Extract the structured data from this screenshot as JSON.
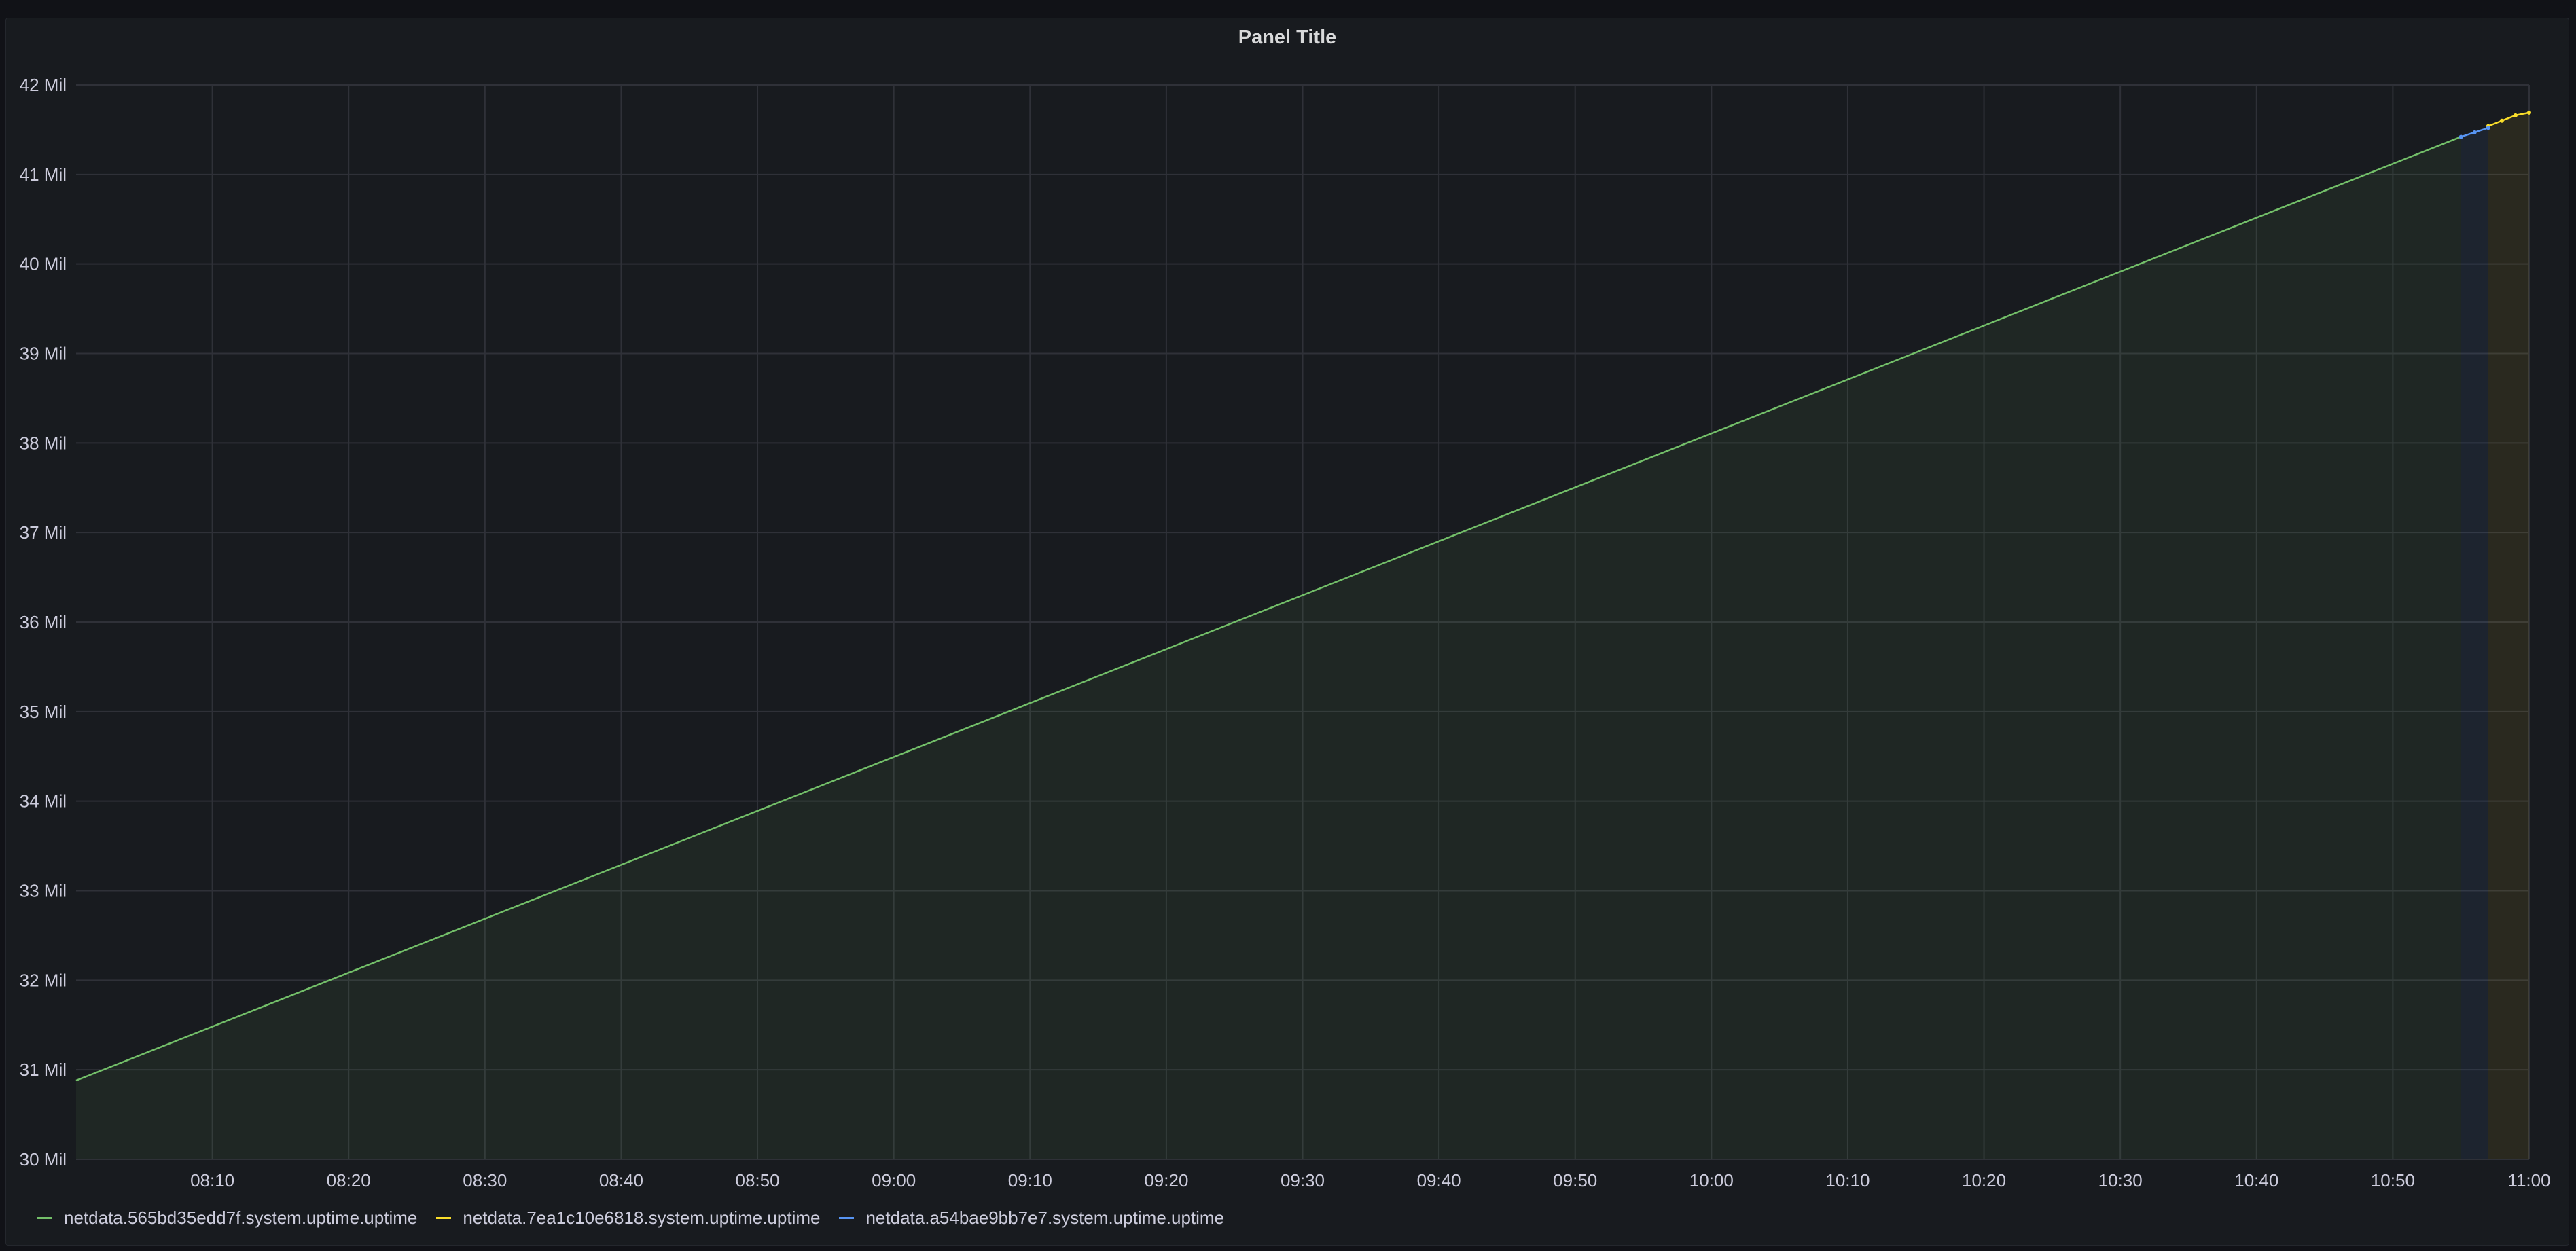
{
  "panel": {
    "title": "Panel Title"
  },
  "colors": {
    "background": "#111217",
    "panel_background": "#181b1f",
    "grid": "#2f3138",
    "text": "#ccccdc"
  },
  "chart_data": {
    "type": "line",
    "title": "Panel Title",
    "xlabel": "",
    "ylabel": "",
    "ylim": [
      30000000,
      42000000
    ],
    "xlim": [
      "08:00:00",
      "11:00:00"
    ],
    "grid": true,
    "legend_position": "bottom-left",
    "x_ticks": [
      "08:10",
      "08:20",
      "08:30",
      "08:40",
      "08:50",
      "09:00",
      "09:10",
      "09:20",
      "09:30",
      "09:40",
      "09:50",
      "10:00",
      "10:10",
      "10:20",
      "10:30",
      "10:40",
      "10:50",
      "11:00"
    ],
    "y_ticks": [
      "30 Mil",
      "31 Mil",
      "32 Mil",
      "33 Mil",
      "34 Mil",
      "35 Mil",
      "36 Mil",
      "37 Mil",
      "38 Mil",
      "39 Mil",
      "40 Mil",
      "41 Mil",
      "42 Mil"
    ],
    "series": [
      {
        "name": "netdata.565bd35edd7f.system.uptime.uptime",
        "color": "#73bf69",
        "fill": true,
        "x": [
          "08:00:00",
          "10:55:00"
        ],
        "values": [
          30880000,
          41420000
        ]
      },
      {
        "name": "netdata.7ea1c10e6818.system.uptime.uptime",
        "color": "#fade2a",
        "fill": true,
        "x": [
          "10:57:00",
          "10:58:00",
          "10:59:00",
          "11:00:00"
        ],
        "values": [
          41540000,
          41600000,
          41660000,
          41690000
        ]
      },
      {
        "name": "netdata.a54bae9bb7e7.system.uptime.uptime",
        "color": "#5794f2",
        "fill": true,
        "x": [
          "10:55:00",
          "10:56:00",
          "10:57:00"
        ],
        "values": [
          41420000,
          41470000,
          41520000
        ]
      }
    ]
  }
}
